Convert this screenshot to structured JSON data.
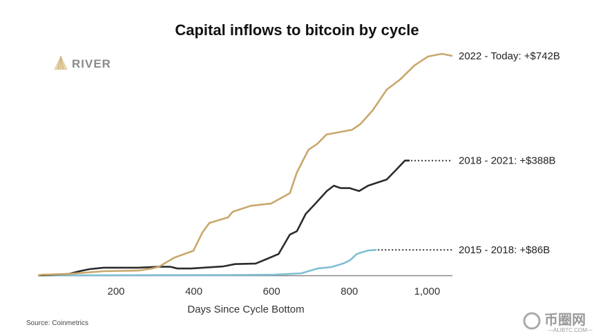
{
  "chart_data": {
    "type": "line",
    "title": "Capital inflows to bitcoin by cycle",
    "xlabel": "Days Since Cycle Bottom",
    "ylabel": "",
    "xlim": [
      0,
      1065
    ],
    "ylim": [
      0,
      742
    ],
    "x_ticks": [
      200,
      400,
      600,
      800,
      1000
    ],
    "x_tick_labels": [
      "200",
      "400",
      "600",
      "800",
      "1,000"
    ],
    "grid": false,
    "series": [
      {
        "name": "2022 - Today",
        "end_label": "2022 - Today: +$742B",
        "color": "#C9A76B",
        "dotted_extension": false,
        "points": [
          [
            0,
            0
          ],
          [
            8,
            2
          ],
          [
            79,
            5
          ],
          [
            168,
            14
          ],
          [
            257,
            16
          ],
          [
            292,
            23
          ],
          [
            310,
            29
          ],
          [
            350,
            60
          ],
          [
            399,
            83
          ],
          [
            422,
            145
          ],
          [
            440,
            177
          ],
          [
            488,
            196
          ],
          [
            500,
            215
          ],
          [
            546,
            235
          ],
          [
            599,
            243
          ],
          [
            647,
            278
          ],
          [
            665,
            348
          ],
          [
            695,
            425
          ],
          [
            718,
            445
          ],
          [
            741,
            476
          ],
          [
            807,
            492
          ],
          [
            828,
            511
          ],
          [
            860,
            558
          ],
          [
            896,
            628
          ],
          [
            931,
            663
          ],
          [
            967,
            709
          ],
          [
            1002,
            740
          ],
          [
            1038,
            749
          ],
          [
            1065,
            742
          ]
        ]
      },
      {
        "name": "2018 - 2021",
        "end_label": "2018 - 2021: +$388B",
        "color": "#2B2B2B",
        "dotted_extension": true,
        "points": [
          [
            0,
            0
          ],
          [
            8,
            0
          ],
          [
            79,
            5
          ],
          [
            106,
            14
          ],
          [
            132,
            21
          ],
          [
            168,
            26
          ],
          [
            257,
            26
          ],
          [
            310,
            29
          ],
          [
            340,
            29
          ],
          [
            358,
            23
          ],
          [
            393,
            23
          ],
          [
            475,
            30
          ],
          [
            506,
            38
          ],
          [
            559,
            40
          ],
          [
            589,
            56
          ],
          [
            618,
            72
          ],
          [
            647,
            138
          ],
          [
            665,
            149
          ],
          [
            688,
            208
          ],
          [
            713,
            243
          ],
          [
            742,
            285
          ],
          [
            760,
            303
          ],
          [
            778,
            295
          ],
          [
            801,
            295
          ],
          [
            825,
            285
          ],
          [
            848,
            303
          ],
          [
            896,
            324
          ],
          [
            919,
            355
          ],
          [
            943,
            388
          ],
          [
            955,
            388
          ]
        ]
      },
      {
        "name": "2015 - 2018",
        "end_label": "2015 - 2018: +$86B",
        "color": "#7FBFD3",
        "dotted_extension": true,
        "points": [
          [
            0,
            0
          ],
          [
            500,
            1
          ],
          [
            606,
            2
          ],
          [
            677,
            7
          ],
          [
            718,
            23
          ],
          [
            754,
            28
          ],
          [
            784,
            40
          ],
          [
            802,
            51
          ],
          [
            819,
            72
          ],
          [
            830,
            77
          ],
          [
            848,
            84
          ],
          [
            870,
            86
          ]
        ]
      }
    ],
    "source": "Source: Coinmetrics"
  },
  "logo": {
    "text": "RIVER",
    "color": "#C9A76B"
  },
  "watermark": {
    "text": "币圈网",
    "sub": "—ALIBTC.COM—"
  }
}
